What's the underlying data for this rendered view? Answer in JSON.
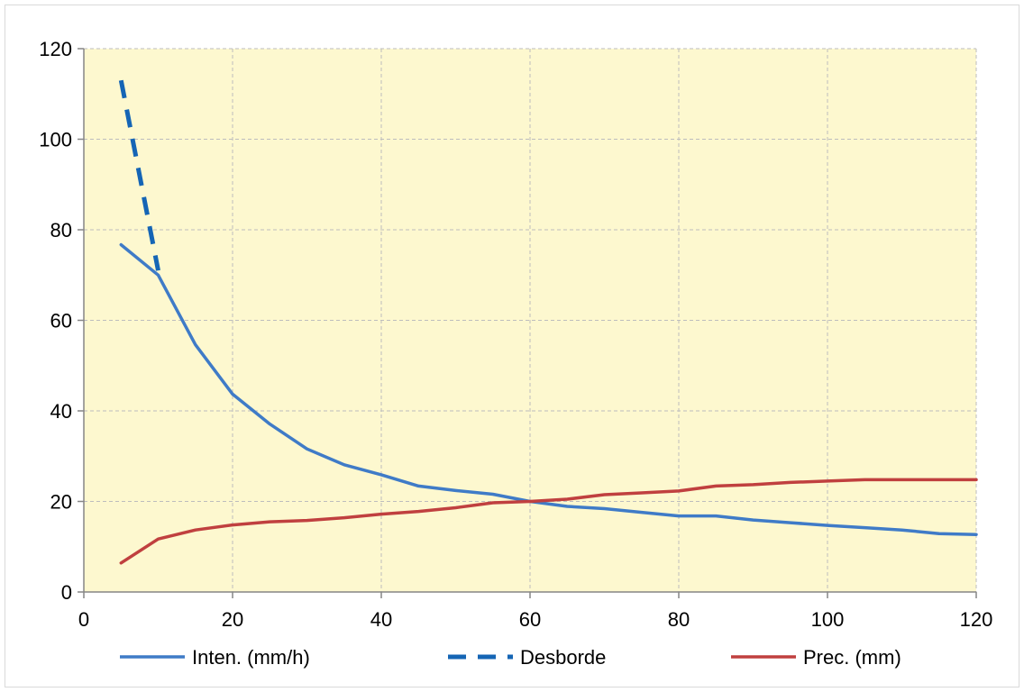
{
  "chart_data": {
    "type": "line",
    "title": "",
    "xlabel": "",
    "ylabel": "",
    "xlim": [
      0,
      120
    ],
    "ylim": [
      0,
      120
    ],
    "x_ticks": [
      0,
      20,
      40,
      60,
      80,
      100,
      120
    ],
    "y_ticks": [
      0,
      20,
      40,
      60,
      80,
      100,
      120
    ],
    "grid": true,
    "plot_background": "#fdf8cf",
    "legend_position": "bottom",
    "series": [
      {
        "name": "Inten. (mm/h)",
        "color": "#3f7bc7",
        "style": "solid",
        "x": [
          5,
          10,
          15,
          20,
          25,
          30,
          35,
          40,
          45,
          50,
          55,
          60,
          65,
          70,
          75,
          80,
          85,
          90,
          95,
          100,
          105,
          110,
          115,
          120
        ],
        "y": [
          76.7,
          70,
          54.6,
          43.7,
          37.1,
          31.6,
          28.1,
          25.9,
          23.4,
          22.4,
          21.6,
          20,
          18.9,
          18.4,
          17.6,
          16.8,
          16.8,
          15.9,
          15.3,
          14.7,
          14.2,
          13.7,
          12.9,
          12.7
        ]
      },
      {
        "name": "Desborde",
        "color": "#1565b5",
        "style": "dashed",
        "x": [
          5,
          10
        ],
        "y": [
          113,
          71
        ]
      },
      {
        "name": "Prec. (mm)",
        "color": "#c0403f",
        "style": "solid",
        "x": [
          5,
          10,
          15,
          20,
          25,
          30,
          35,
          40,
          45,
          50,
          55,
          60,
          65,
          70,
          75,
          80,
          85,
          90,
          95,
          100,
          105,
          110,
          115,
          120
        ],
        "y": [
          6.4,
          11.7,
          13.7,
          14.8,
          15.5,
          15.8,
          16.4,
          17.2,
          17.8,
          18.6,
          19.7,
          20,
          20.5,
          21.5,
          21.9,
          22.3,
          23.4,
          23.7,
          24.2,
          24.5,
          24.8,
          24.8,
          24.8,
          24.8
        ]
      }
    ]
  }
}
